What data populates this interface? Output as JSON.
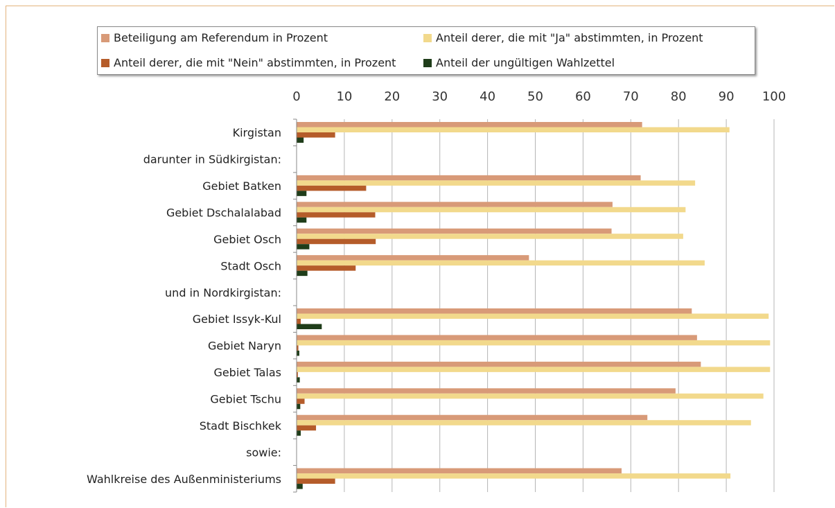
{
  "chart_data": {
    "type": "bar",
    "orientation": "horizontal",
    "title": "",
    "xlim": [
      0,
      100
    ],
    "xticks": [
      0,
      10,
      20,
      30,
      40,
      50,
      60,
      70,
      80,
      90,
      100
    ],
    "grid": true,
    "legend_position": "top",
    "categories": [
      "Kirgistan",
      "darunter in Südkirgistan:",
      "Gebiet Batken",
      "Gebiet Dschalalabad",
      "Gebiet Osch",
      "Stadt Osch",
      "und in Nordkirgistan:",
      "Gebiet Issyk-Kul",
      "Gebiet Naryn",
      "Gebiet Talas",
      "Gebiet Tschu",
      "Stadt Bischkek",
      "sowie:",
      "Wahlkreise des Außenministeriums"
    ],
    "series": [
      {
        "name": "Beteiligung am Referendum in Prozent",
        "color": "#d89a78",
        "values": [
          72.3,
          null,
          72.0,
          66.1,
          65.9,
          48.6,
          null,
          82.7,
          83.8,
          84.6,
          79.3,
          73.4,
          null,
          68.0
        ]
      },
      {
        "name": "Anteil derer, die mit \"Ja\" abstimmten, in Prozent",
        "color": "#f2d98c",
        "values": [
          90.6,
          null,
          83.4,
          81.4,
          80.9,
          85.4,
          null,
          98.8,
          99.1,
          99.1,
          97.7,
          95.1,
          null,
          90.8
        ]
      },
      {
        "name": "Anteil derer, die mit \"Nein\" abstimmten, in Prozent",
        "color": "#b55c2a",
        "values": [
          8.0,
          null,
          14.5,
          16.4,
          16.5,
          12.3,
          null,
          0.8,
          0.3,
          0.2,
          1.6,
          4.0,
          null,
          8.0
        ]
      },
      {
        "name": "Anteil der ungültigen Wahlzettel",
        "color": "#1f3d1a",
        "values": [
          1.4,
          null,
          2.0,
          2.0,
          2.6,
          2.2,
          null,
          5.2,
          0.5,
          0.6,
          0.7,
          0.8,
          null,
          1.2
        ]
      }
    ]
  }
}
